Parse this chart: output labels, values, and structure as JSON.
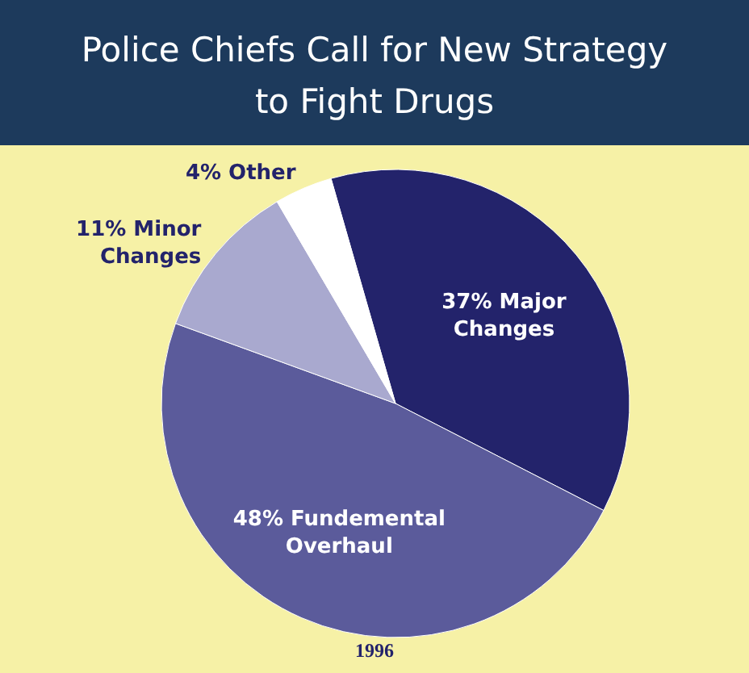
{
  "chart_data": {
    "type": "pie",
    "title": "Police Chiefs Call for New Strategy to Fight Drugs",
    "categories": [
      "Major Changes",
      "Fundemental Overhaul",
      "Minor Changes",
      "Other"
    ],
    "values": [
      37,
      48,
      11,
      4
    ],
    "value_labels": [
      "37%",
      "48%",
      "11%",
      "4%"
    ],
    "colors": [
      "#23236b",
      "#5b5b9b",
      "#a9a9cf",
      "#ffffff"
    ],
    "annotations": [
      "1996"
    ]
  }
}
